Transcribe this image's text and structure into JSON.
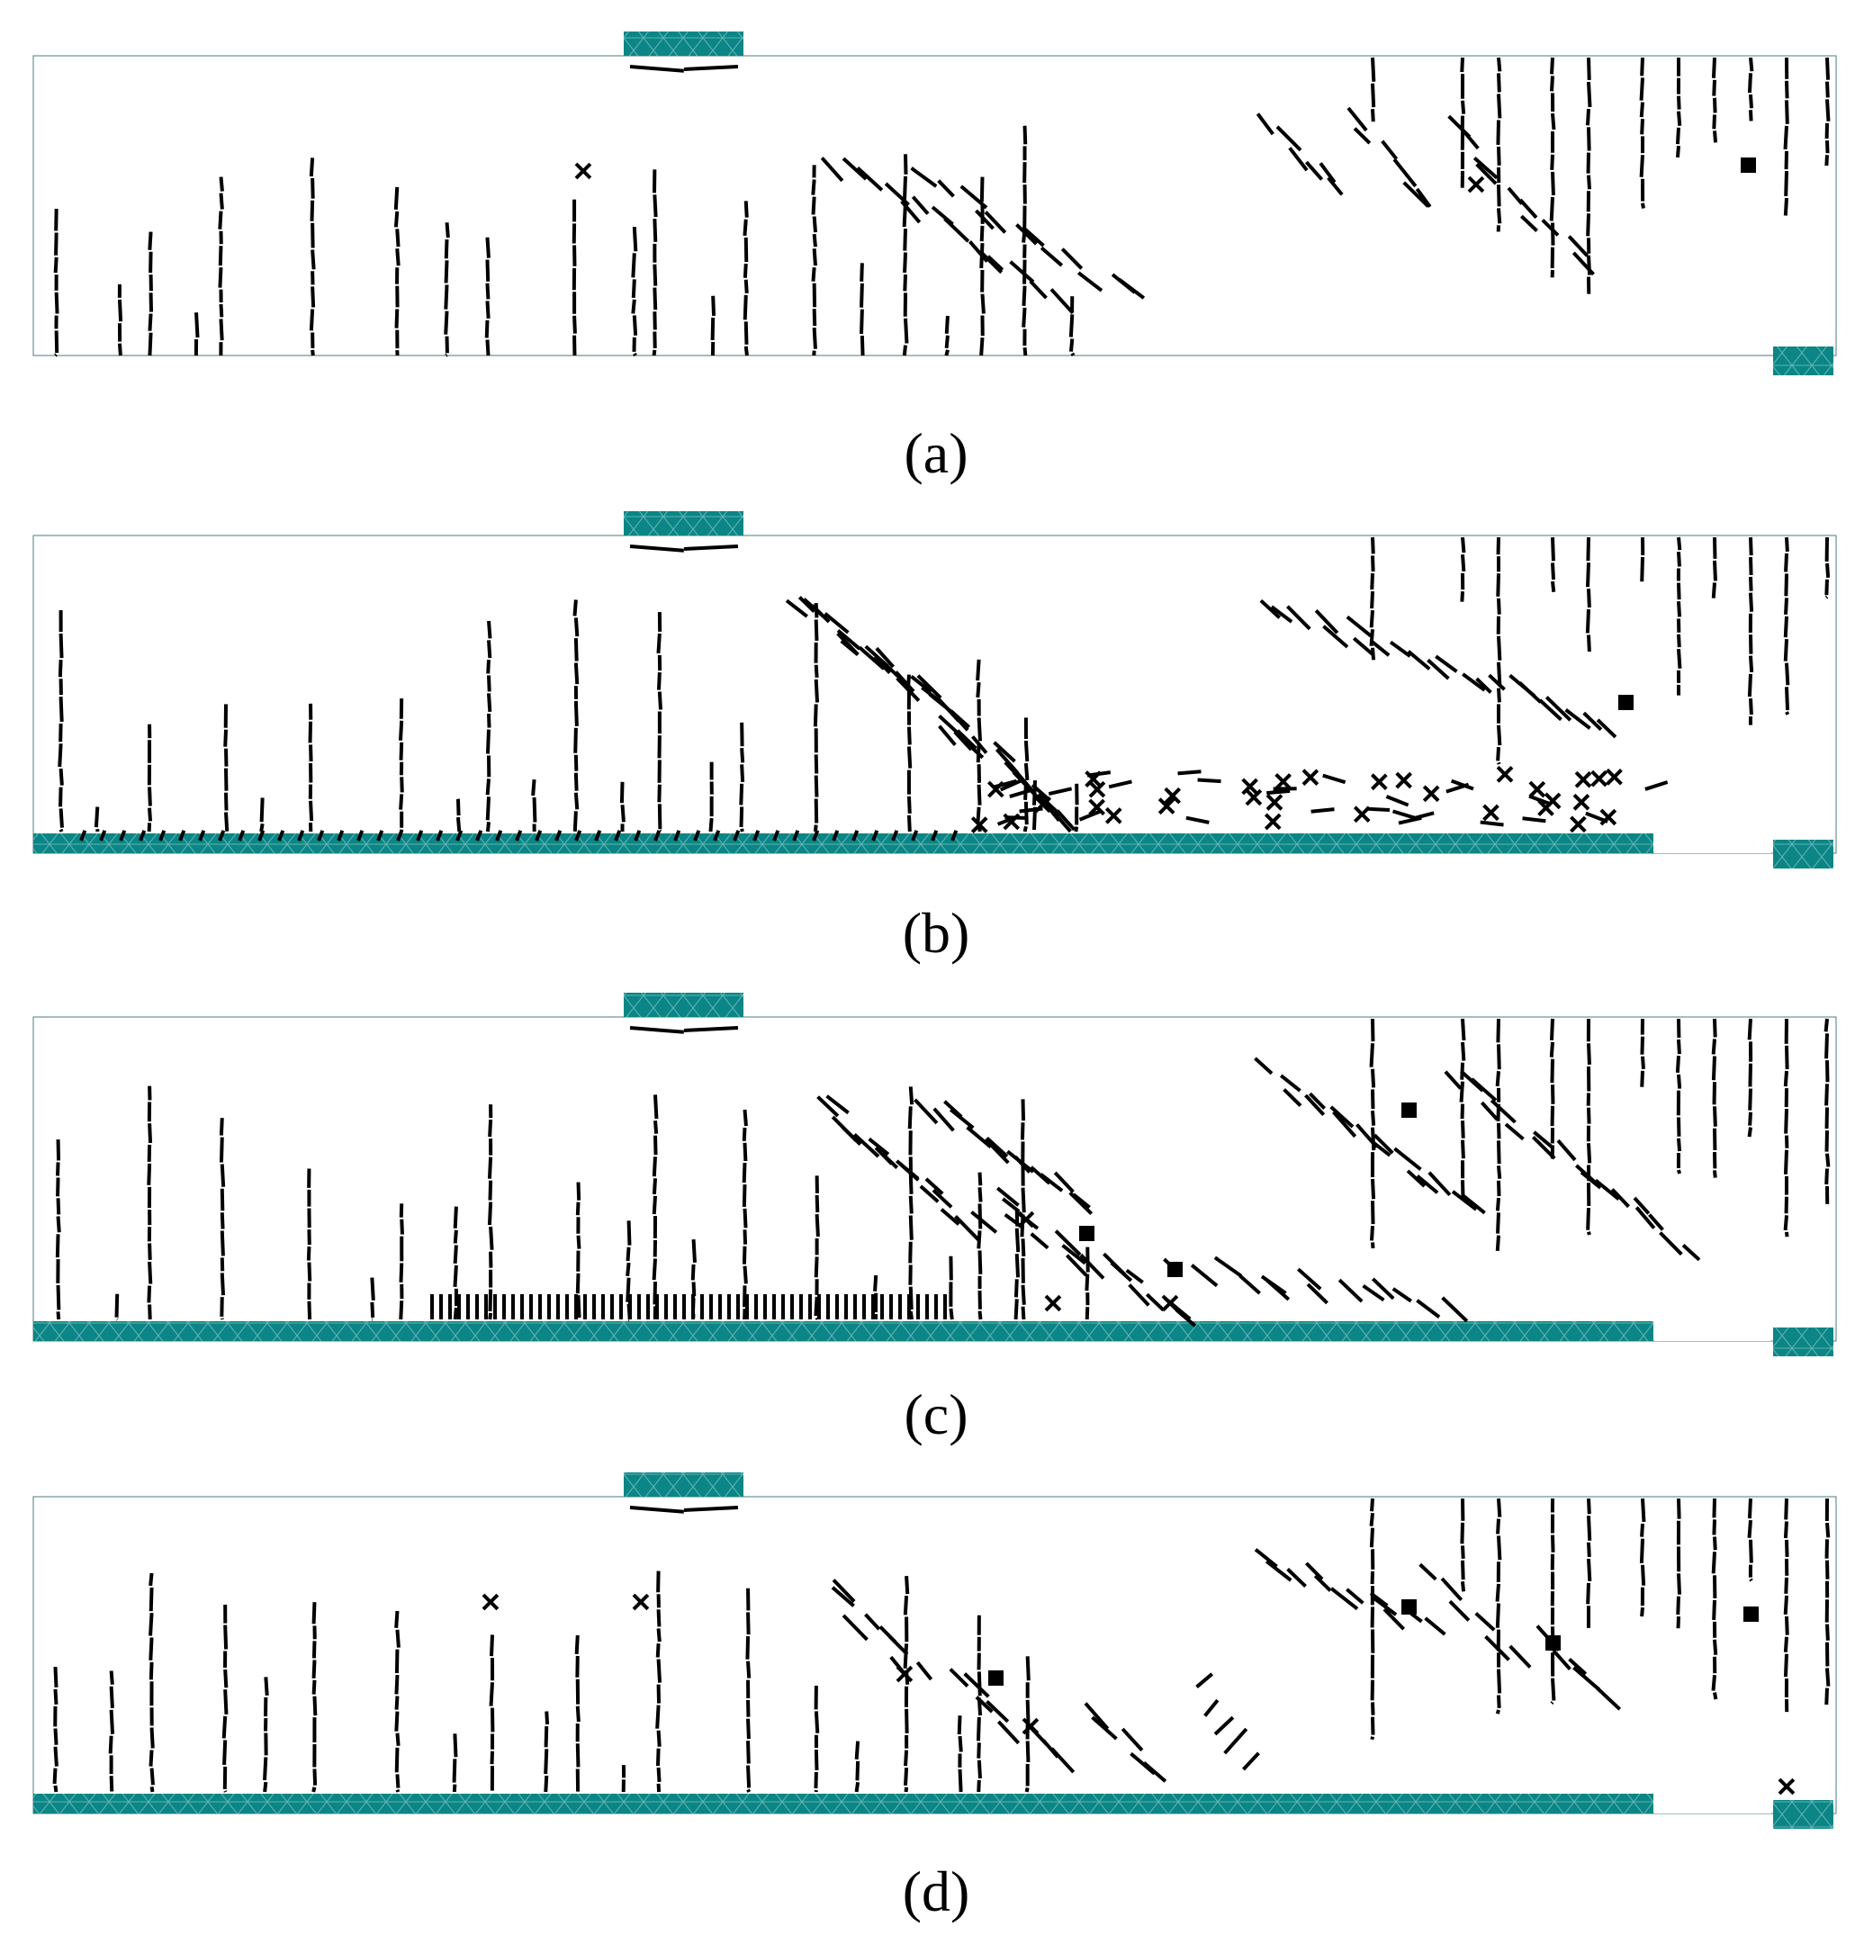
{
  "figure": {
    "panels": [
      {
        "id": "a",
        "label": "(a)"
      },
      {
        "id": "b",
        "label": "(b)"
      },
      {
        "id": "c",
        "label": "(c)"
      },
      {
        "id": "d",
        "label": "(d)"
      }
    ]
  },
  "colors": {
    "mesh_fill": "#0b8585",
    "mesh_lines": "#5fb3b3",
    "crack": "#000000",
    "background": "#ffffff"
  }
}
